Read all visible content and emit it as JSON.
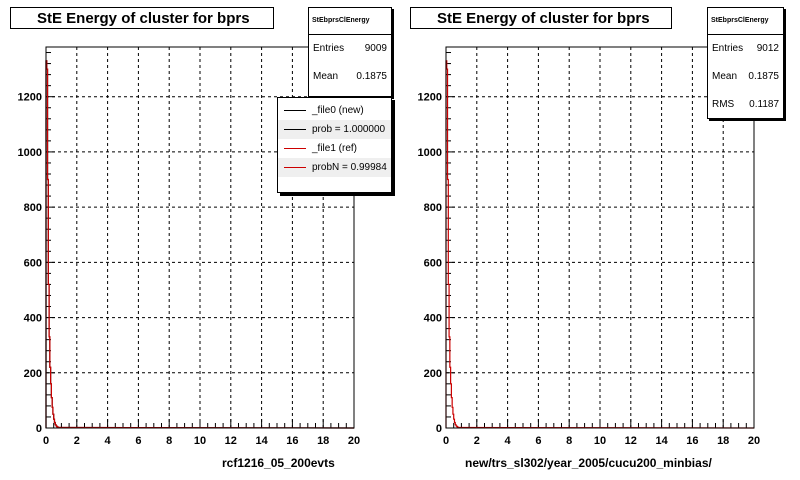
{
  "panels": [
    {
      "title": "StE Energy of cluster for bprs",
      "footer": "rcf1216_05_200evts",
      "stats": {
        "name": "StEbprsClEnergy",
        "rows": [
          {
            "label": "Entries",
            "value": "9009"
          },
          {
            "label": "Mean",
            "value": "0.1875"
          }
        ]
      },
      "legend": [
        {
          "text": "_file0 (new)",
          "color": "#000000"
        },
        {
          "text": "prob = 1.000000",
          "color": "#000000"
        },
        {
          "text": "_file1 (ref)",
          "color": "#cc0000"
        },
        {
          "text": "probN = 0.99984",
          "color": "#cc0000"
        }
      ]
    },
    {
      "title": "StE Energy of cluster for bprs",
      "footer": "new/trs_sl302/year_2005/cucu200_minbias/",
      "stats": {
        "name": "StEbprsClEnergy",
        "rows": [
          {
            "label": "Entries",
            "value": "9012"
          },
          {
            "label": "Mean",
            "value": "0.1875"
          },
          {
            "label": "RMS",
            "value": "0.1187"
          }
        ]
      },
      "legend": []
    }
  ],
  "chart_data": [
    {
      "type": "histogram",
      "title": "StE Energy of cluster for bprs",
      "xlabel": "rcf1216_05_200evts",
      "ylabel": "",
      "xlim": [
        0,
        20
      ],
      "ylim": [
        0,
        1380
      ],
      "x_ticks": [
        0,
        2,
        4,
        6,
        8,
        10,
        12,
        14,
        16,
        18,
        20
      ],
      "y_ticks": [
        0,
        200,
        400,
        600,
        800,
        1000,
        1200
      ],
      "grid": true,
      "legend_position": "top-right",
      "bin_width": 0.05,
      "series": [
        {
          "name": "_file0 (new)",
          "color": "#000000",
          "bins_x": [
            0.0,
            0.05,
            0.1,
            0.15,
            0.2,
            0.25,
            0.3,
            0.35,
            0.4,
            0.45,
            0.5,
            0.55,
            0.6,
            0.65,
            0.7,
            0.75,
            0.8
          ],
          "values": [
            1330,
            1300,
            900,
            520,
            330,
            220,
            160,
            110,
            75,
            50,
            32,
            20,
            12,
            8,
            5,
            3,
            2
          ]
        },
        {
          "name": "_file1 (ref)",
          "color": "#cc0000",
          "bins_x": [
            0.0,
            0.05,
            0.1,
            0.15,
            0.2,
            0.25,
            0.3,
            0.35,
            0.4,
            0.45,
            0.5,
            0.55,
            0.6,
            0.65,
            0.7,
            0.75,
            0.8
          ],
          "values": [
            1330,
            1300,
            900,
            520,
            330,
            220,
            160,
            110,
            75,
            50,
            32,
            20,
            12,
            8,
            5,
            3,
            2
          ]
        }
      ]
    },
    {
      "type": "histogram",
      "title": "StE Energy of cluster for bprs",
      "xlabel": "new/trs_sl302/year_2005/cucu200_minbias/",
      "ylabel": "",
      "xlim": [
        0,
        20
      ],
      "ylim": [
        0,
        1380
      ],
      "x_ticks": [
        0,
        2,
        4,
        6,
        8,
        10,
        12,
        14,
        16,
        18,
        20
      ],
      "y_ticks": [
        0,
        200,
        400,
        600,
        800,
        1000,
        1200
      ],
      "grid": true,
      "bin_width": 0.05,
      "series": [
        {
          "name": "",
          "color": "#cc0000",
          "bins_x": [
            0.0,
            0.05,
            0.1,
            0.15,
            0.2,
            0.25,
            0.3,
            0.35,
            0.4,
            0.45,
            0.5,
            0.55,
            0.6,
            0.65,
            0.7,
            0.75,
            0.8
          ],
          "values": [
            1330,
            1300,
            900,
            520,
            330,
            220,
            160,
            110,
            75,
            50,
            32,
            20,
            12,
            8,
            5,
            3,
            2
          ]
        }
      ]
    }
  ]
}
